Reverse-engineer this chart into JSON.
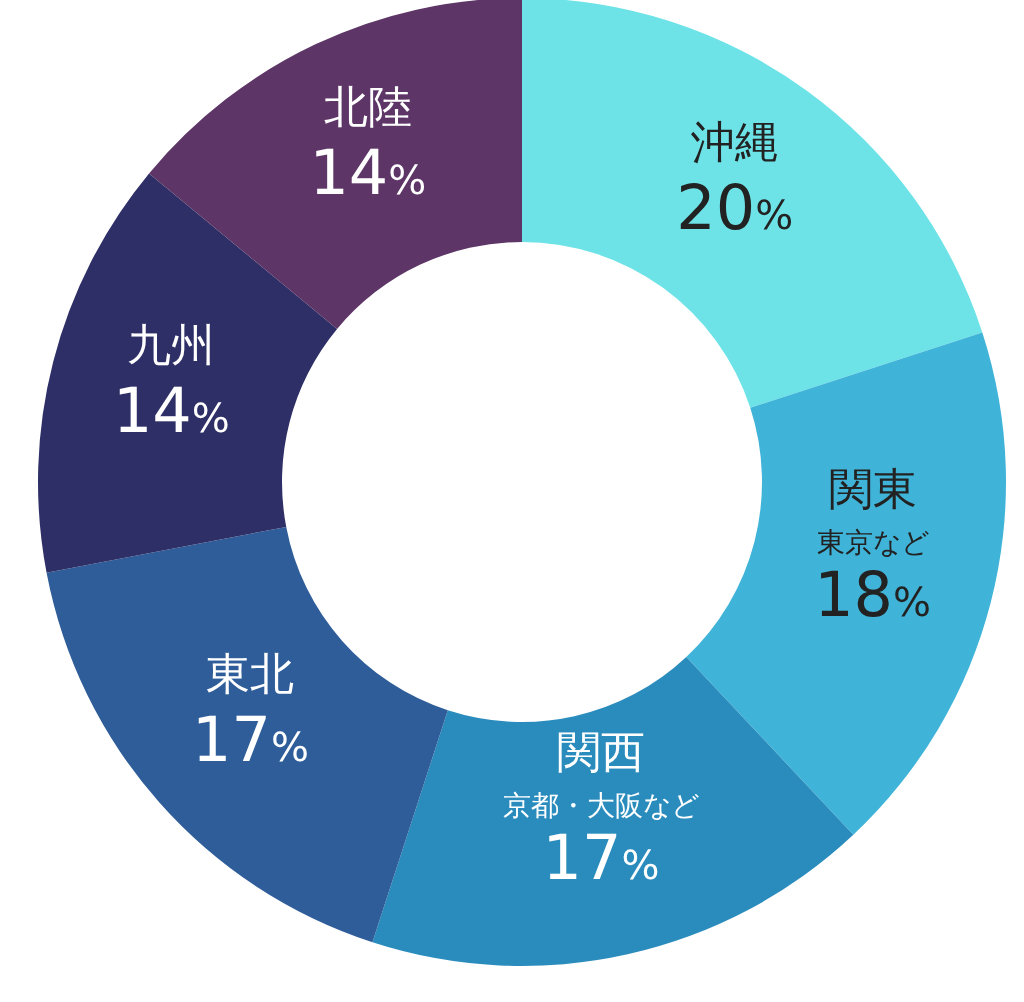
{
  "chart_data": {
    "type": "donut",
    "categories": [
      "沖縄",
      "関東",
      "関西",
      "東北",
      "九州",
      "北陸"
    ],
    "values": [
      20,
      18,
      17,
      17,
      14,
      14
    ],
    "colors": [
      "#6de3e8",
      "#40b4d8",
      "#2a8cbd",
      "#2e5d99",
      "#2e2f66",
      "#5d3566"
    ],
    "value_labels": [
      "20%",
      "18%",
      "17%",
      "17%",
      "14%",
      "14%"
    ],
    "annotations": [
      {
        "text": "東京など",
        "x": "関東"
      },
      {
        "text": "京都・大阪など",
        "x": "関西"
      }
    ]
  }
}
